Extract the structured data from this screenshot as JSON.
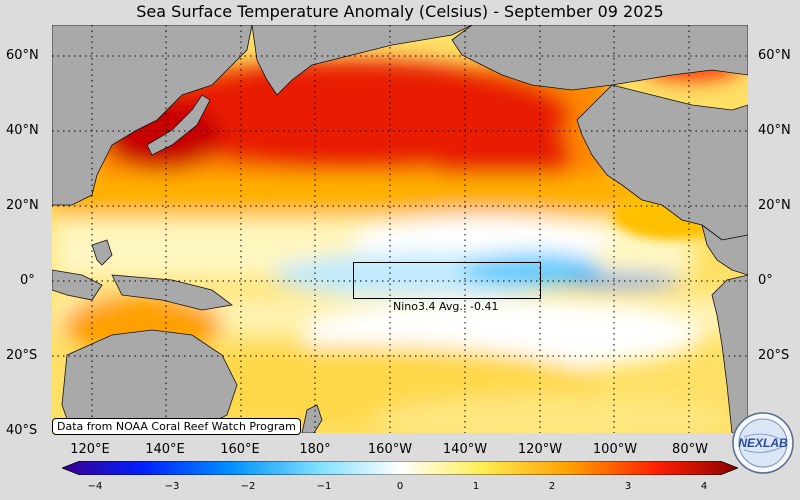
{
  "title": "Sea Surface Temperature Anomaly (Celsius) - September 09 2025",
  "credit": "Data from NOAA Coral Reef Watch Program",
  "nino_label": "Nino3.4 Avg.: -0.41",
  "lat_labels": [
    "60°N",
    "40°N",
    "20°N",
    "0°",
    "20°S",
    "40°S"
  ],
  "lon_labels": [
    "120°E",
    "140°E",
    "160°E",
    "180°",
    "160°W",
    "140°W",
    "120°W",
    "100°W",
    "80°W"
  ],
  "colorbar_ticks": [
    "−4",
    "−3",
    "−2",
    "−1",
    "0",
    "1",
    "2",
    "3",
    "4"
  ],
  "logo_text": "NEXLAB",
  "colors": {
    "land": "#a9a9a9",
    "background": "#dcdcdc",
    "warm": "#e60000",
    "cool": "#00a0ff"
  }
}
